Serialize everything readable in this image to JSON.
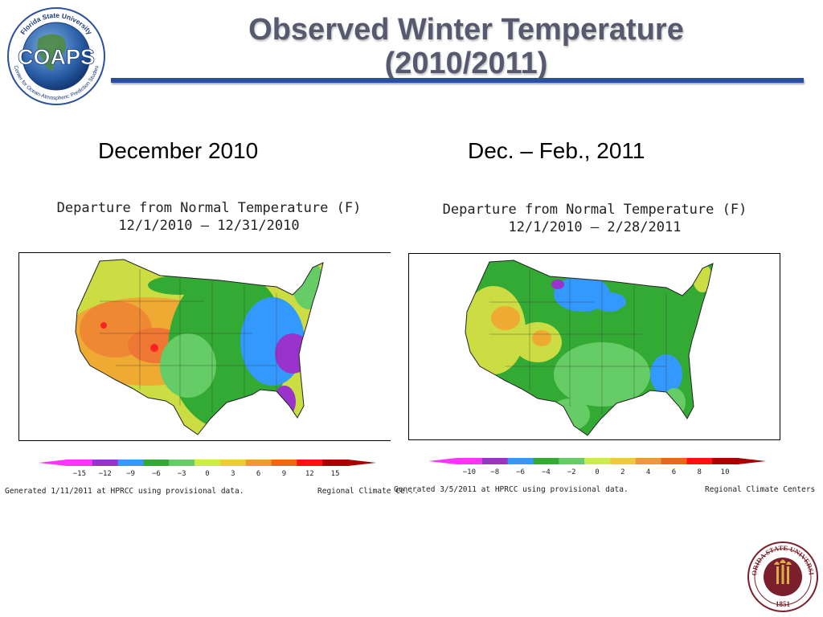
{
  "slide": {
    "title_line1": "Observed Winter Temperature",
    "title_line2": "(2010/2011)",
    "subtitle_left": "December 2010",
    "subtitle_right": "Dec. – Feb., 2011"
  },
  "logos": {
    "coaps_text": "COAPS",
    "coaps_ring_top": "Florida State University",
    "coaps_ring_bottom": "Center for Ocean-Atmospheric Prediction Studies",
    "seal_ring": "FLORIDA STATE UNIVERSITY",
    "seal_year": "1851"
  },
  "maps": [
    {
      "title_line1": "Departure from Normal Temperature (F)",
      "title_line2": "12/1/2010 – 12/31/2010",
      "scale_labels": [
        "−15",
        "−12",
        "−9",
        "−6",
        "−3",
        "0",
        "3",
        "6",
        "9",
        "12",
        "15"
      ],
      "footer_left": "Generated 1/11/2011 at HPRCC using provisional data.",
      "footer_right": "Regional Climate Ce..."
    },
    {
      "title_line1": "Departure from Normal Temperature (F)",
      "title_line2": "12/1/2010 – 2/28/2011",
      "scale_labels": [
        "−10",
        "−8",
        "−6",
        "−4",
        "−2",
        "0",
        "2",
        "4",
        "6",
        "8",
        "10"
      ],
      "footer_left": "Generated 3/5/2011 at HPRCC using provisional data.",
      "footer_right": "Regional Climate Centers"
    }
  ],
  "colors": {
    "title": "#575a6e",
    "rule": "#2a4fa0",
    "scale": [
      "#ff33ff",
      "#9933cc",
      "#3399ff",
      "#33aa33",
      "#66cc66",
      "#ccee44",
      "#eecc33",
      "#ee9933",
      "#ee6611",
      "#ff1111",
      "#aa0000"
    ]
  }
}
